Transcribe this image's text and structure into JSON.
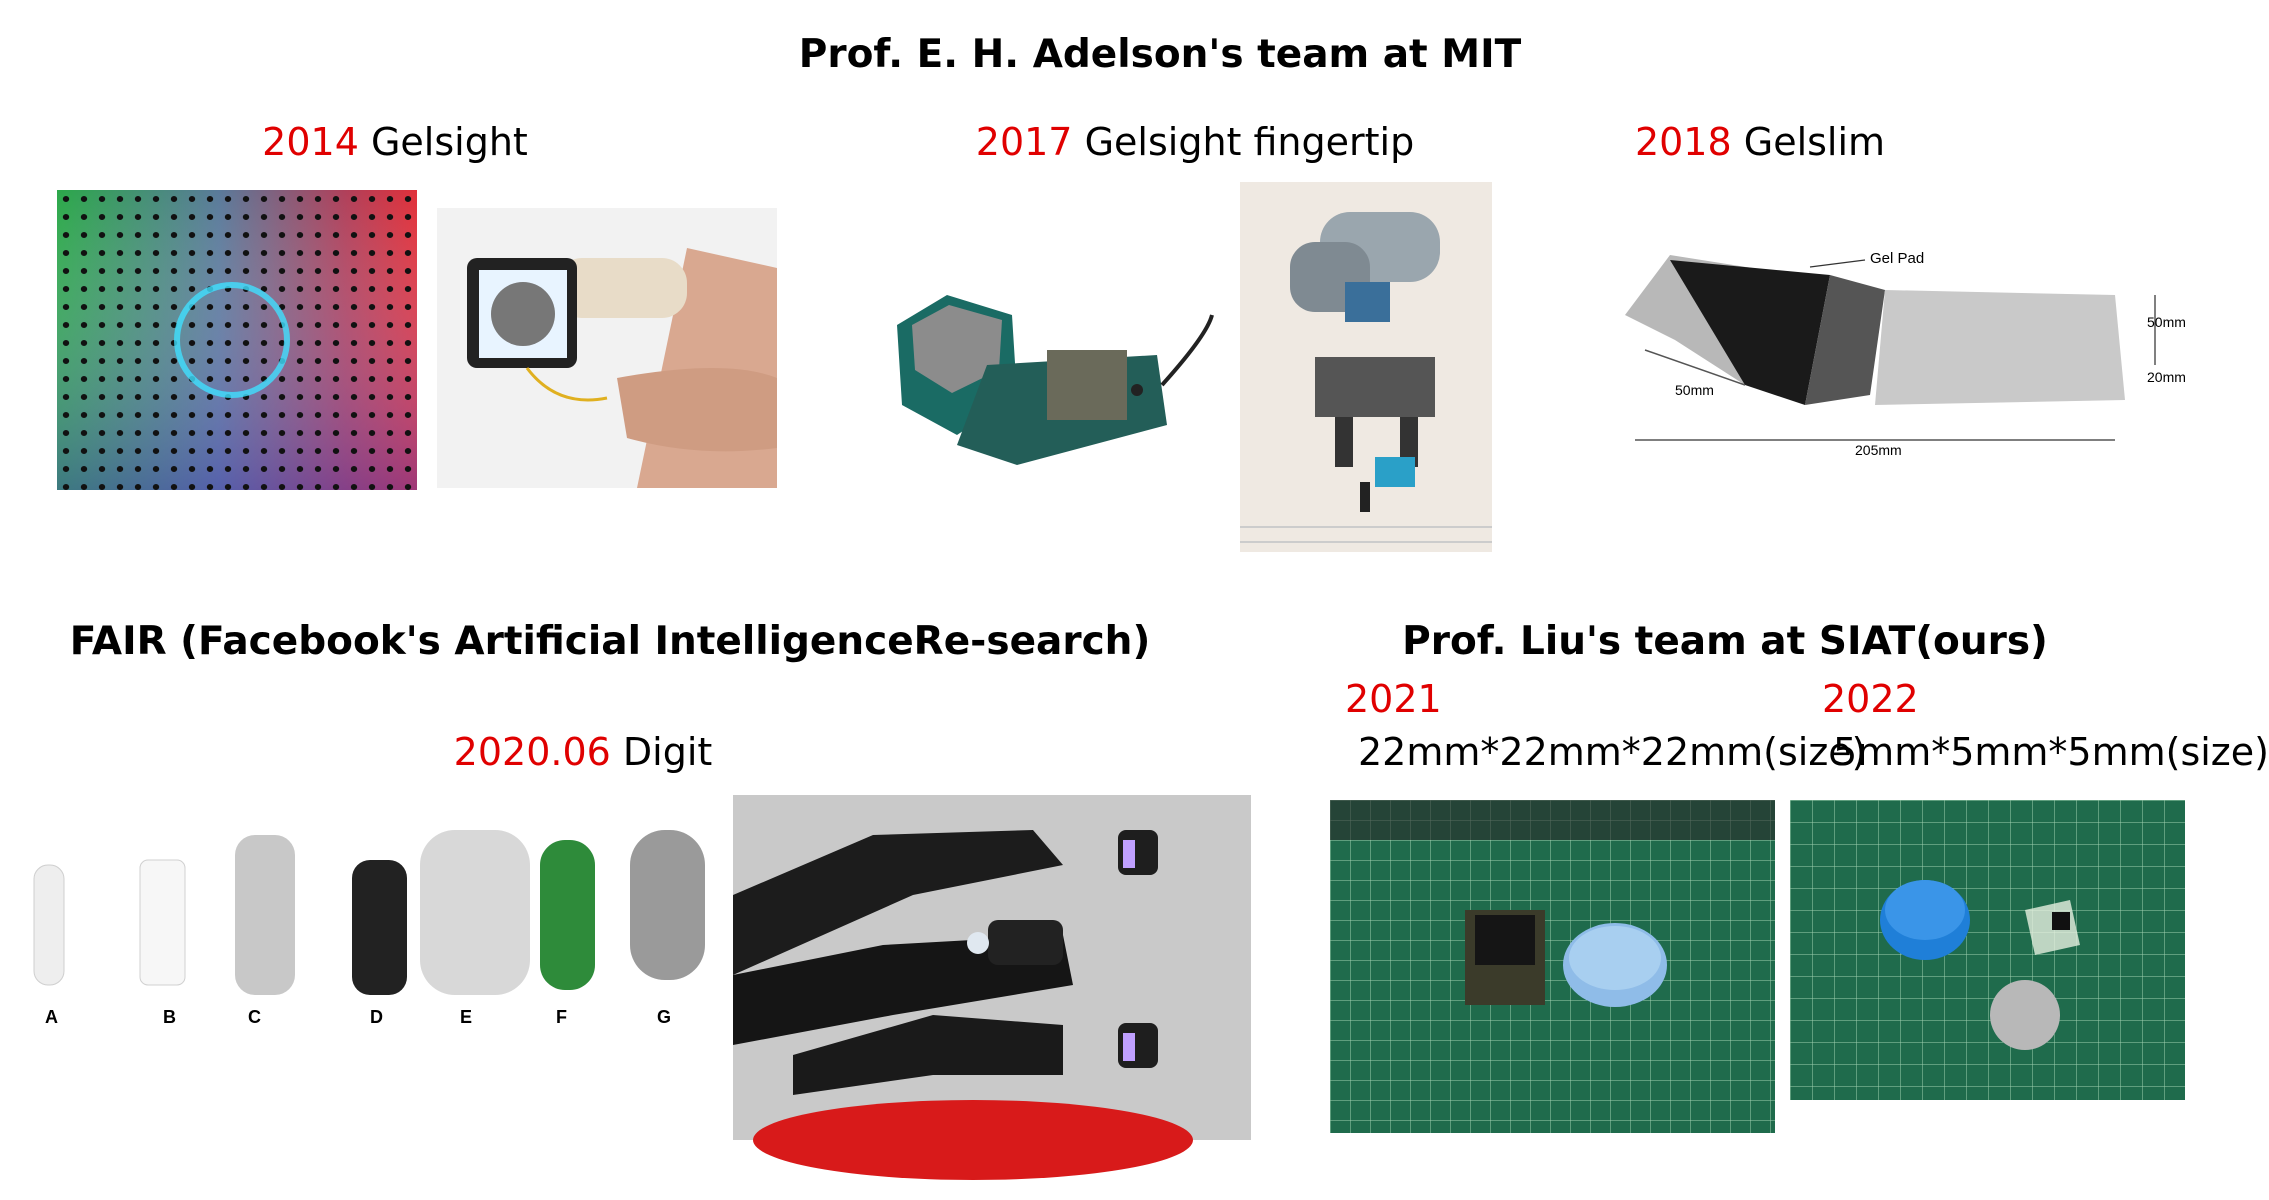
{
  "mit": {
    "heading": "Prof. E. H. Adelson's team at MIT",
    "items": [
      {
        "year": "2014",
        "name": "Gelsight"
      },
      {
        "year": "2017",
        "name": "Gelsight fingertip"
      },
      {
        "year": "2018",
        "name": "Gelslim"
      }
    ],
    "gelslim_labels": {
      "gel_pad": "Gel Pad",
      "len1": "50mm",
      "height": "50mm",
      "depth": "20mm",
      "length": "205mm"
    }
  },
  "fair": {
    "heading": "FAIR (Facebook's Artificial IntelligenceRe-search)",
    "item": {
      "year": "2020.06",
      "name": "Digit"
    },
    "part_labels": [
      "A",
      "B",
      "C",
      "D",
      "E",
      "F",
      "G"
    ]
  },
  "siat": {
    "heading": "Prof. Liu's team at SIAT(ours)",
    "items": [
      {
        "year": "2021",
        "size": "22mm*22mm*22mm(size)"
      },
      {
        "year": "2022",
        "size": "5mm*5mm*5mm(size)"
      }
    ]
  },
  "colors": {
    "year": "#e00000",
    "text": "#000000",
    "mat_green": "#1f6b4c"
  }
}
